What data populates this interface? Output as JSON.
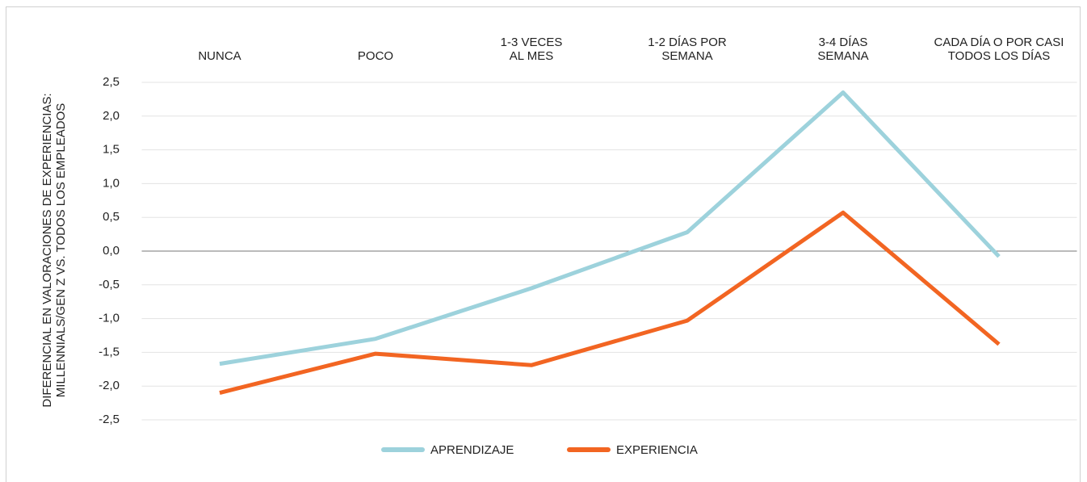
{
  "chart_data": {
    "type": "line",
    "y_label": "DIFERENCIAL EN VALORACIONES DE EXPERIENCIAS:\nMILLENNIALS/GEN Z VS. TODOS LOS EMPLEADOS",
    "categories": [
      "NUNCA",
      "POCO",
      "1-3 VECES\nAL MES",
      "1-2 DÍAS POR\nSEMANA",
      "3-4 DÍAS\nSEMANA",
      "CADA DÍA O POR CASI\nTODOS LOS DÍAS"
    ],
    "series": [
      {
        "name": "APRENDIZAJE",
        "color": "#9dd2dc",
        "values": [
          -1.67,
          -1.3,
          -0.55,
          0.28,
          2.35,
          -0.08
        ]
      },
      {
        "name": "EXPERIENCIA",
        "color": "#f26522",
        "values": [
          -2.1,
          -1.52,
          -1.69,
          -1.03,
          0.57,
          -1.38
        ]
      }
    ],
    "ylim": [
      -2.5,
      2.5
    ],
    "yticks": [
      {
        "value": 2.5,
        "label": "2,5"
      },
      {
        "value": 2,
        "label": "2,0"
      },
      {
        "value": 1.5,
        "label": "1,5"
      },
      {
        "value": 1,
        "label": "1,0"
      },
      {
        "value": 0.5,
        "label": "0,5"
      },
      {
        "value": 0,
        "label": "0,0"
      },
      {
        "value": -0.5,
        "label": "-0,5"
      },
      {
        "value": -1,
        "label": "-1,0"
      },
      {
        "value": -1.5,
        "label": "-1,5"
      },
      {
        "value": -2,
        "label": "-2,0"
      },
      {
        "value": -2.5,
        "label": "-2,5"
      }
    ],
    "grid": true,
    "legend": "bottom"
  }
}
